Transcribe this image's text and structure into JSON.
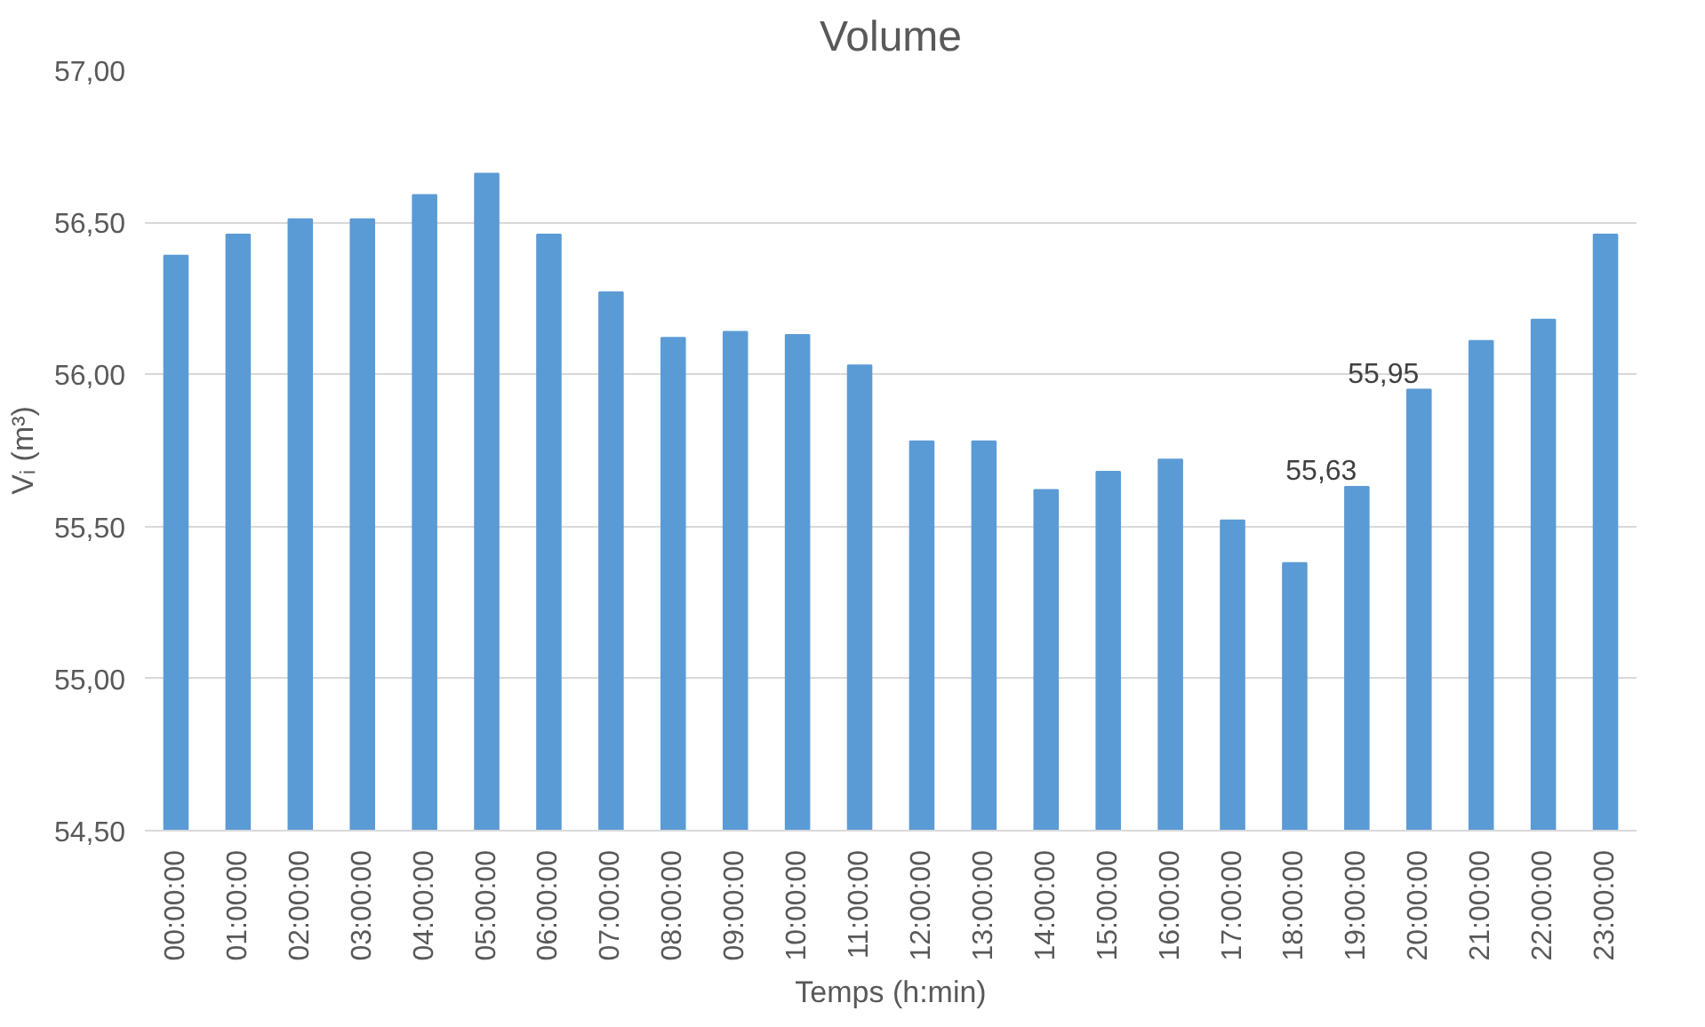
{
  "chart_data": {
    "type": "bar",
    "title": "Volume",
    "xlabel": "Temps (h:min)",
    "ylabel": "Vᵢ (m³)",
    "categories": [
      "00:00:00",
      "01:00:00",
      "02:00:00",
      "03:00:00",
      "04:00:00",
      "05:00:00",
      "06:00:00",
      "07:00:00",
      "08:00:00",
      "09:00:00",
      "10:00:00",
      "11:00:00",
      "12:00:00",
      "13:00:00",
      "14:00:00",
      "15:00:00",
      "16:00:00",
      "17:00:00",
      "18:00:00",
      "19:00:00",
      "20:00:00",
      "21:00:00",
      "22:00:00",
      "23:00:00"
    ],
    "values": [
      56.39,
      56.46,
      56.51,
      56.51,
      56.59,
      56.66,
      56.46,
      56.27,
      56.12,
      56.14,
      56.13,
      56.03,
      55.78,
      55.78,
      55.62,
      55.68,
      55.72,
      55.52,
      55.38,
      55.63,
      55.95,
      56.11,
      56.18,
      56.46
    ],
    "value_labels": [
      null,
      null,
      null,
      null,
      null,
      null,
      null,
      null,
      null,
      null,
      null,
      null,
      null,
      null,
      null,
      null,
      null,
      null,
      null,
      "55,63",
      "55,95",
      null,
      null,
      null
    ],
    "color": "#5b9bd5",
    "ylim": [
      54.5,
      57
    ],
    "yticks": [
      {
        "value": 54.5,
        "label": "54,50"
      },
      {
        "value": 55,
        "label": "55,00"
      },
      {
        "value": 55.5,
        "label": "55,50"
      },
      {
        "value": 56,
        "label": "56,00"
      },
      {
        "value": 56.5,
        "label": "56,50"
      },
      {
        "value": 57,
        "label": "57,00"
      }
    ],
    "grid": "y"
  }
}
